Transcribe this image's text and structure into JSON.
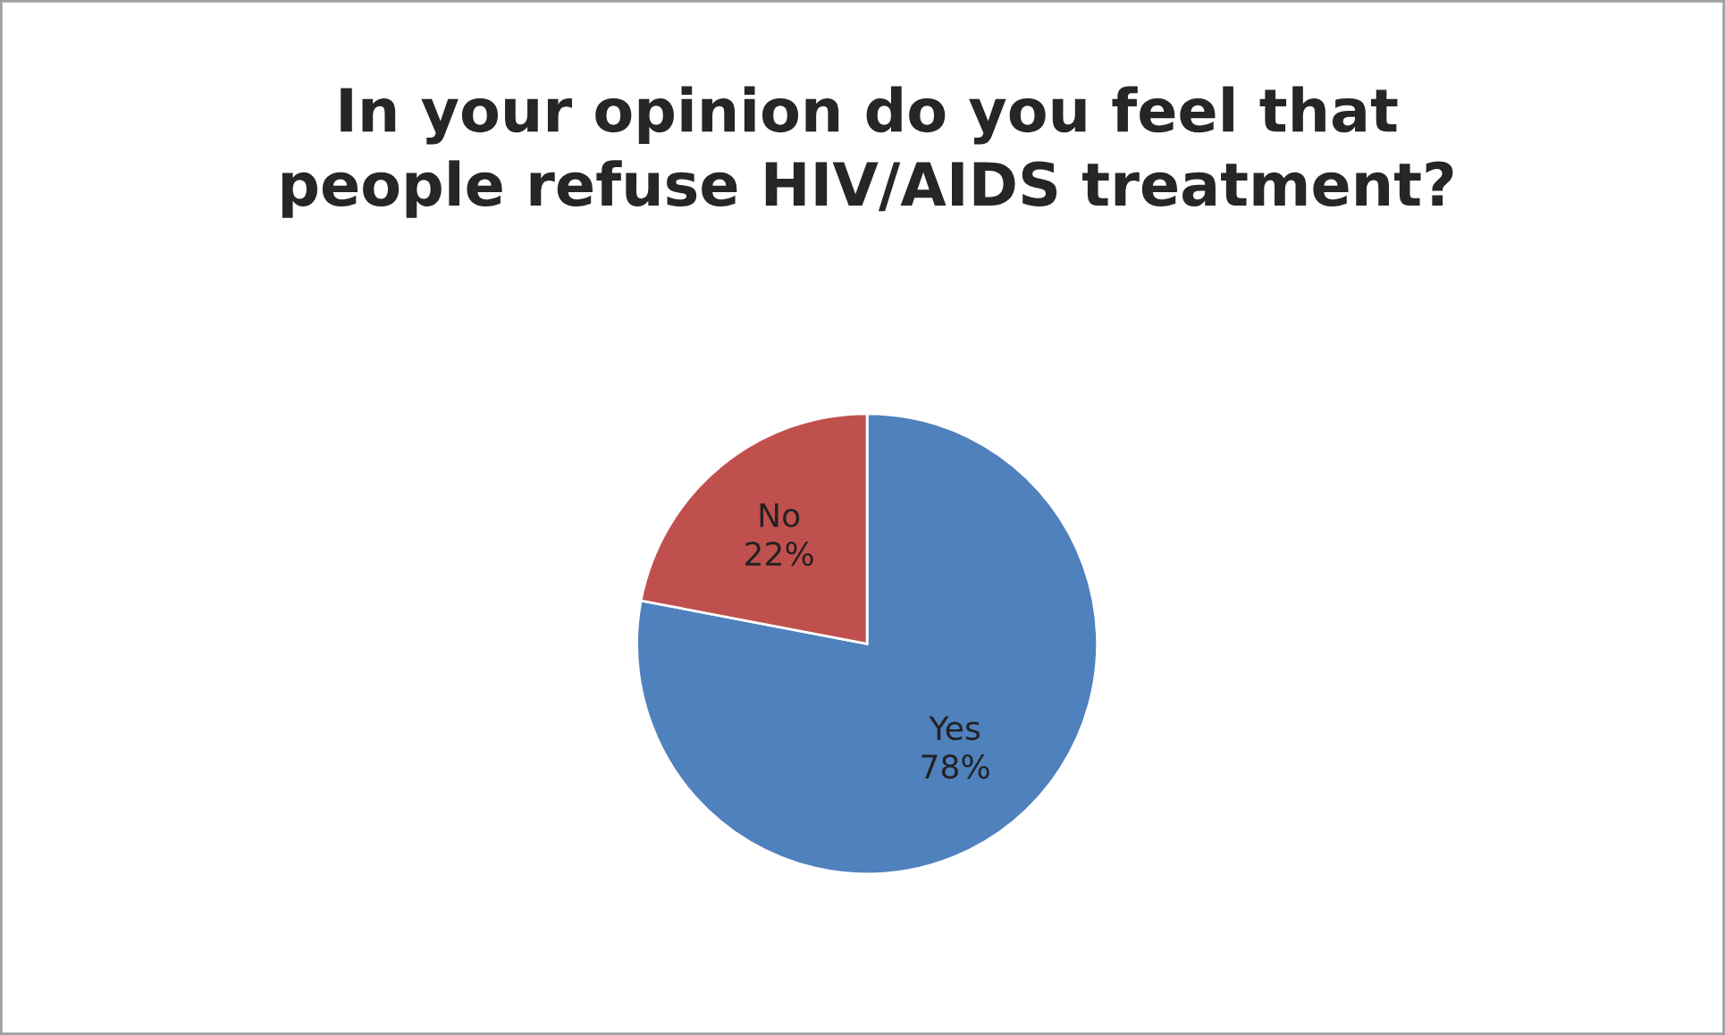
{
  "chart_data": {
    "type": "pie",
    "title": "In your opinion do you feel that\npeople refuse HIV/AIDS treatment?",
    "categories": [
      "Yes",
      "No"
    ],
    "values": [
      78,
      22
    ],
    "value_labels": [
      "78%",
      "22%"
    ],
    "colors": [
      "#4f81bd",
      "#c0504d"
    ],
    "legend": false
  }
}
